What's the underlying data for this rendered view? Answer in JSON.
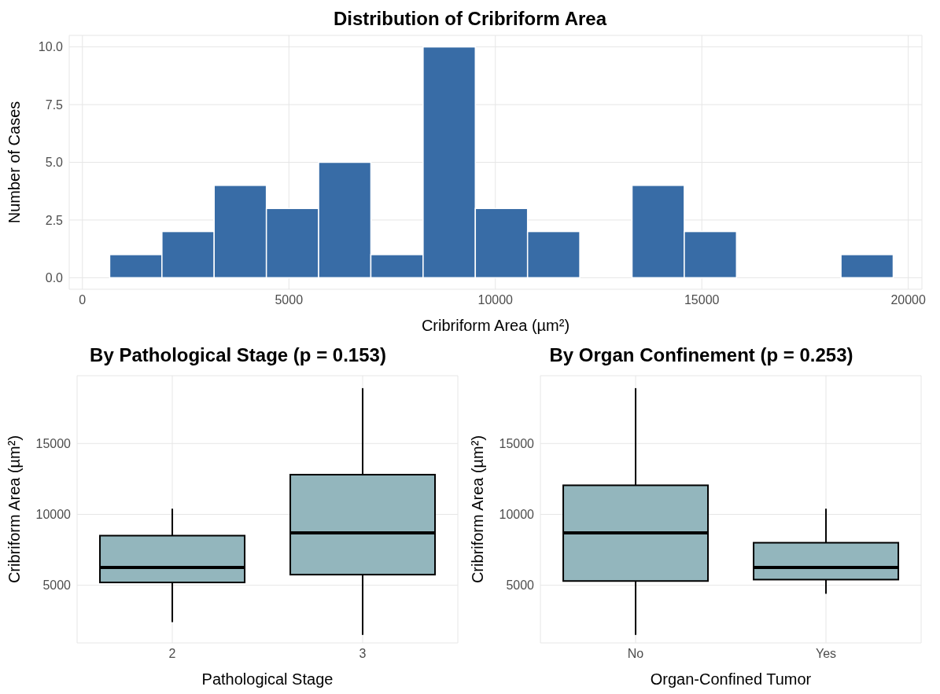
{
  "chart_data": [
    {
      "type": "histogram",
      "title": "Distribution of Cribriform Area",
      "xlabel": "Cribriform Area (µm²)",
      "ylabel": "Number of Cases",
      "bins": [
        660,
        1925,
        3190,
        4455,
        5720,
        6985,
        8250,
        9515,
        10780,
        12045,
        13310,
        14575,
        15840,
        17105,
        18370,
        19635
      ],
      "values": [
        1,
        2,
        4,
        3,
        5,
        1,
        10,
        3,
        2,
        0,
        4,
        2,
        0,
        0,
        1
      ],
      "color": "#386ca6",
      "xlim": [
        -320,
        20330
      ],
      "xticks": [
        0,
        5000,
        10000,
        15000,
        20000
      ],
      "ylim": [
        -0.5,
        10.5
      ],
      "yticks": [
        {
          "value": 0,
          "label": "0.0"
        },
        {
          "value": 2.5,
          "label": "2.5"
        },
        {
          "value": 5,
          "label": "5.0"
        },
        {
          "value": 7.5,
          "label": "7.5"
        },
        {
          "value": 10,
          "label": "10.0"
        }
      ],
      "grid": true
    },
    {
      "type": "box",
      "title": "By Pathological Stage (p = 0.153)",
      "xlabel": "Pathological Stage",
      "ylabel": "Cribriform Area (µm²)",
      "categories": [
        "2",
        "3"
      ],
      "color": "#93b6bd",
      "boxes": [
        {
          "low": 2400,
          "q1": 5200,
          "median": 6250,
          "q3": 8500,
          "high": 10400
        },
        {
          "low": 1500,
          "q1": 5750,
          "median": 8700,
          "q3": 12800,
          "high": 18900
        }
      ],
      "ylim": [
        935,
        19780
      ],
      "yticks": [
        5000,
        10000,
        15000
      ],
      "grid": true
    },
    {
      "type": "box",
      "title": "By Organ Confinement (p = 0.253)",
      "xlabel": "Organ-Confined Tumor",
      "ylabel": "Cribriform Area (µm²)",
      "categories": [
        "No",
        "Yes"
      ],
      "color": "#93b6bd",
      "boxes": [
        {
          "low": 1500,
          "q1": 5300,
          "median": 8700,
          "q3": 12050,
          "high": 18900
        },
        {
          "low": 4400,
          "q1": 5400,
          "median": 6250,
          "q3": 8000,
          "high": 10400
        }
      ],
      "ylim": [
        935,
        19780
      ],
      "yticks": [
        5000,
        10000,
        15000
      ],
      "grid": true
    }
  ]
}
